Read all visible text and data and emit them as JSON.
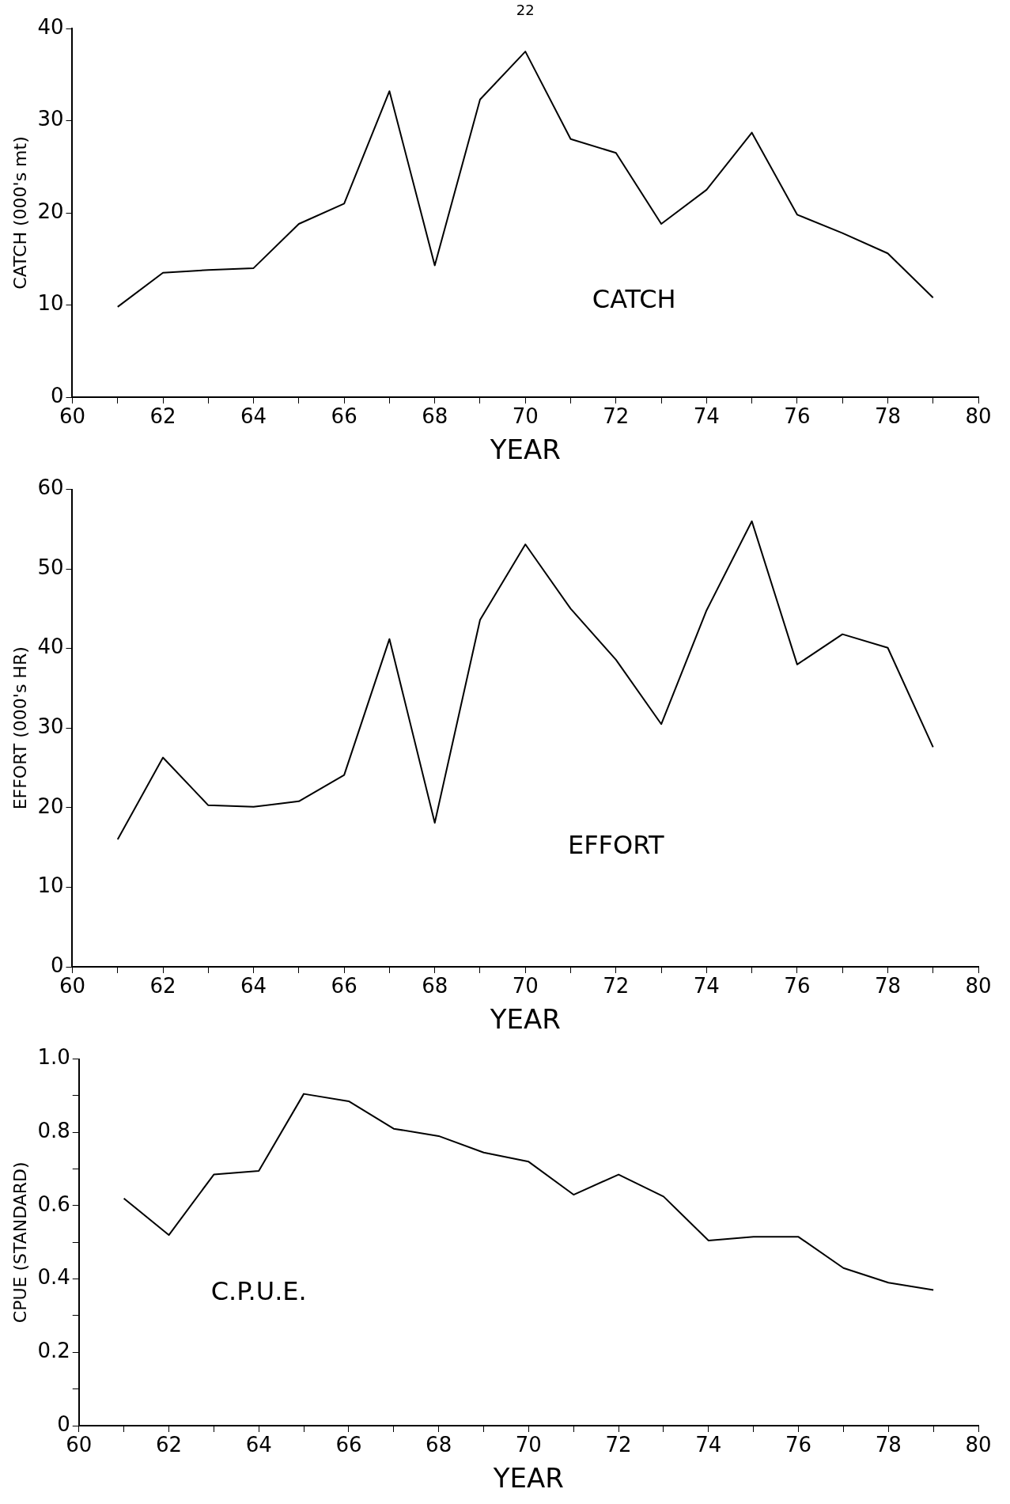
{
  "chart_data": [
    {
      "type": "line",
      "xlabel": "YEAR",
      "ylabel": "CATCH (000's mt)",
      "annotations": [
        "22",
        "CATCH"
      ],
      "x": [
        61,
        62,
        63,
        64,
        65,
        66,
        67,
        68,
        69,
        70,
        71,
        72,
        73,
        74,
        75,
        76,
        77,
        78,
        79
      ],
      "values": [
        9.8,
        13.5,
        13.8,
        14,
        18.8,
        21,
        33.2,
        14.3,
        32.3,
        37.5,
        28,
        26.5,
        18.8,
        22.5,
        28.7,
        19.8,
        17.8,
        15.6,
        10.8
      ],
      "color": "#000000",
      "xlim": [
        60,
        80
      ],
      "xticks": [
        60,
        {
          "value": 61,
          "label": null
        },
        62,
        {
          "value": 63,
          "label": null
        },
        64,
        {
          "value": 65,
          "label": null
        },
        66,
        {
          "value": 67,
          "label": null
        },
        68,
        {
          "value": 69,
          "label": null
        },
        70,
        {
          "value": 71,
          "label": null
        },
        72,
        {
          "value": 73,
          "label": null
        },
        74,
        {
          "value": 75,
          "label": null
        },
        76,
        {
          "value": 77,
          "label": null
        },
        78,
        {
          "value": 79,
          "label": null
        },
        80
      ],
      "ylim": [
        0,
        40
      ],
      "yticks": [
        0,
        10,
        20,
        30,
        40
      ],
      "marker": "none",
      "line_style": "solid"
    },
    {
      "type": "line",
      "xlabel": "YEAR",
      "ylabel": "EFFORT (000's HR)",
      "annotations": [
        "EFFORT"
      ],
      "x": [
        61,
        62,
        63,
        64,
        65,
        66,
        67,
        68,
        69,
        70,
        71,
        72,
        73,
        74,
        75,
        76,
        77,
        78,
        79
      ],
      "values": [
        16,
        26.3,
        20.3,
        20.1,
        20.8,
        24.1,
        41.2,
        18.1,
        43.6,
        53.1,
        45,
        38.6,
        30.5,
        44.8,
        56,
        38,
        41.8,
        40.1,
        27.6
      ],
      "color": "#000000",
      "xlim": [
        60,
        80
      ],
      "xticks": [
        60,
        {
          "value": 61,
          "label": null
        },
        62,
        {
          "value": 63,
          "label": null
        },
        64,
        {
          "value": 65,
          "label": null
        },
        66,
        {
          "value": 67,
          "label": null
        },
        68,
        {
          "value": 69,
          "label": null
        },
        70,
        {
          "value": 71,
          "label": null
        },
        72,
        {
          "value": 73,
          "label": null
        },
        74,
        {
          "value": 75,
          "label": null
        },
        76,
        {
          "value": 77,
          "label": null
        },
        78,
        {
          "value": 79,
          "label": null
        },
        80
      ],
      "ylim": [
        0,
        60
      ],
      "yticks": [
        0,
        10,
        20,
        30,
        40,
        50,
        60
      ],
      "marker": "none",
      "line_style": "solid"
    },
    {
      "type": "line",
      "xlabel": "YEAR",
      "ylabel": "CPUE (STANDARD)",
      "annotations": [
        "C.P.U.E."
      ],
      "x": [
        61,
        62,
        63,
        64,
        65,
        66,
        67,
        68,
        69,
        70,
        71,
        72,
        73,
        74,
        75,
        76,
        77,
        78,
        79
      ],
      "values": [
        0.62,
        0.52,
        0.685,
        0.695,
        0.905,
        0.885,
        0.81,
        0.79,
        0.745,
        0.72,
        0.63,
        0.685,
        0.625,
        0.505,
        0.515,
        0.515,
        0.43,
        0.39,
        0.37
      ],
      "color": "#000000",
      "xlim": [
        60,
        80
      ],
      "xticks": [
        60,
        {
          "value": 61,
          "label": null
        },
        62,
        {
          "value": 63,
          "label": null
        },
        64,
        {
          "value": 65,
          "label": null
        },
        66,
        {
          "value": 67,
          "label": null
        },
        68,
        {
          "value": 69,
          "label": null
        },
        70,
        {
          "value": 71,
          "label": null
        },
        72,
        {
          "value": 73,
          "label": null
        },
        74,
        {
          "value": 75,
          "label": null
        },
        76,
        {
          "value": 77,
          "label": null
        },
        78,
        {
          "value": 79,
          "label": null
        },
        80
      ],
      "ylim": [
        0,
        1
      ],
      "yticks": [
        0,
        {
          "value": 0.1,
          "label": null
        },
        {
          "value": 0.2,
          "label": "0.2"
        },
        {
          "value": 0.3,
          "label": null
        },
        {
          "value": 0.4,
          "label": "0.4"
        },
        {
          "value": 0.5,
          "label": null
        },
        {
          "value": 0.6,
          "label": "0.6"
        },
        {
          "value": 0.7,
          "label": null
        },
        {
          "value": 0.8,
          "label": "0.8"
        },
        {
          "value": 0.9,
          "label": null
        },
        {
          "value": 1,
          "label": "1.0"
        }
      ],
      "marker": "none",
      "line_style": "solid"
    }
  ]
}
